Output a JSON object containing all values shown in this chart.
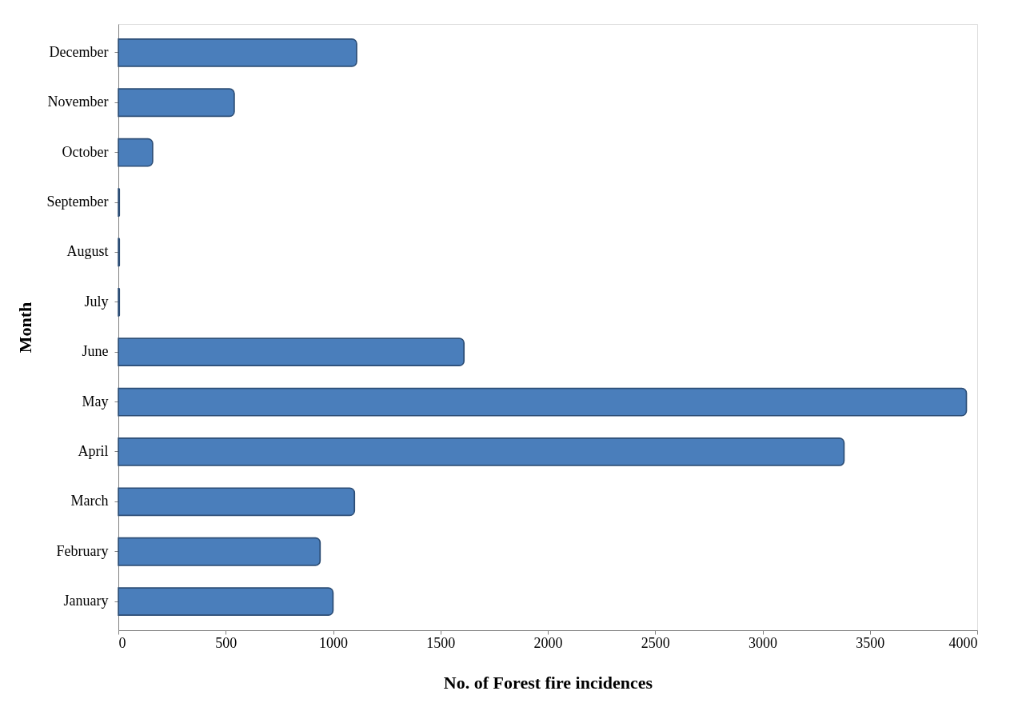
{
  "chart_data": {
    "type": "bar",
    "orientation": "horizontal",
    "xlabel": "No. of Forest fire incidences",
    "ylabel": "Month",
    "categories": [
      "December",
      "November",
      "October",
      "September",
      "August",
      "July",
      "June",
      "May",
      "April",
      "March",
      "February",
      "January"
    ],
    "values": [
      1110,
      540,
      160,
      5,
      5,
      5,
      1610,
      3950,
      3380,
      1100,
      940,
      1000
    ],
    "color": "#4a7ebb",
    "xlim": [
      0,
      4000
    ],
    "xticks": [
      0,
      500,
      1000,
      1500,
      2000,
      2500,
      3000,
      3500,
      4000
    ],
    "grid": false
  }
}
